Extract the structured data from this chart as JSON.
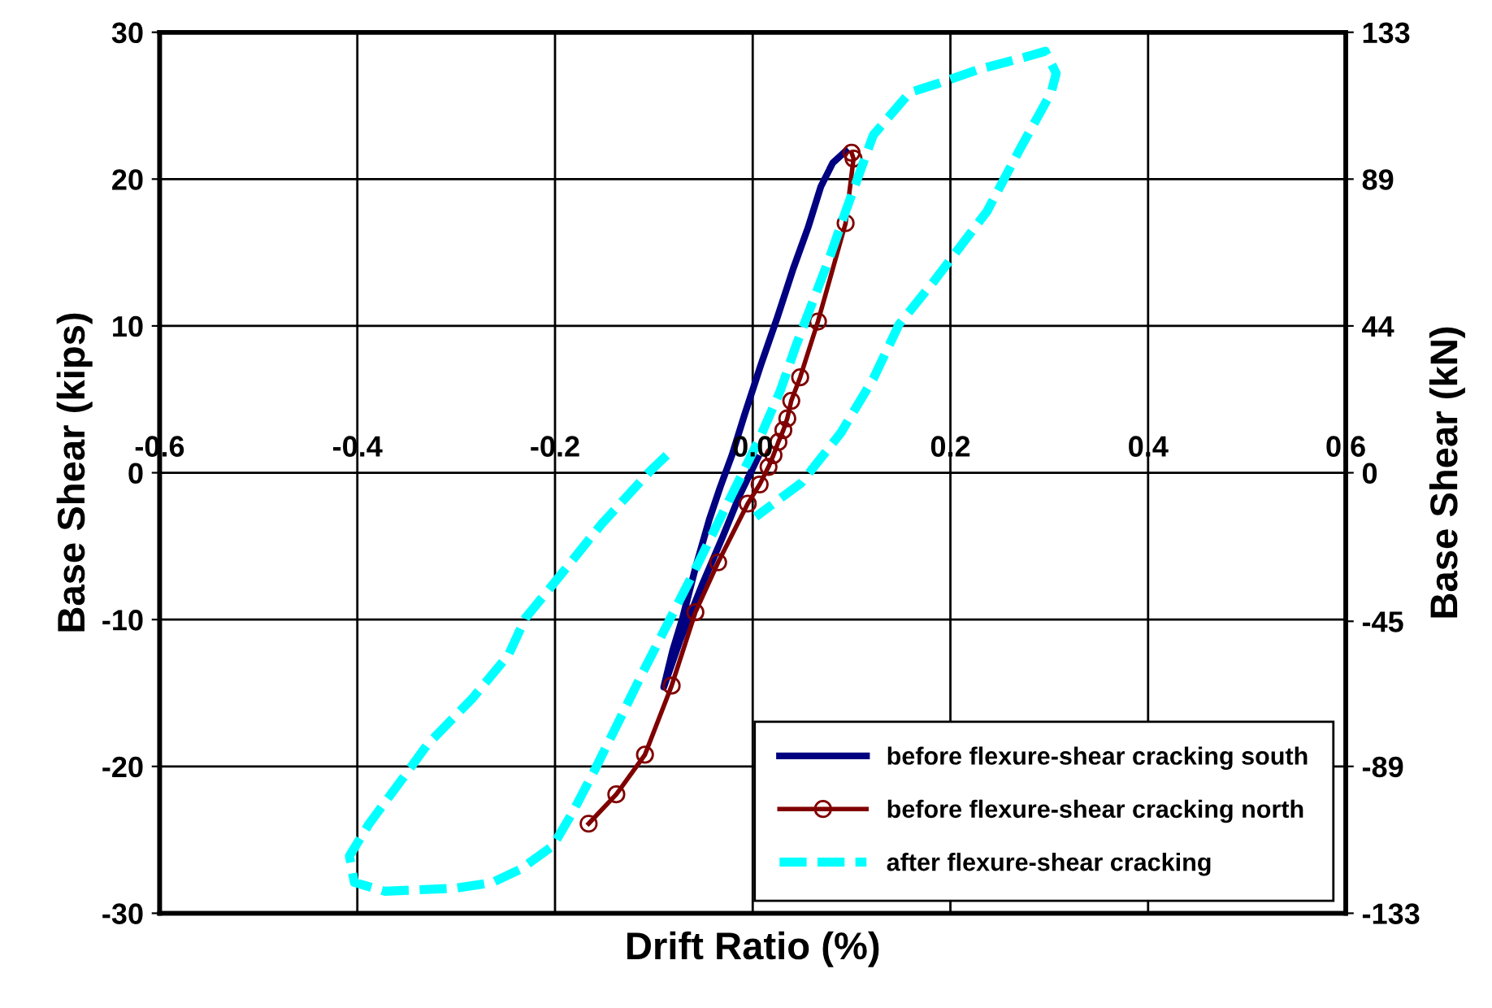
{
  "chart_data": {
    "type": "line",
    "xlabel": "Drift Ratio (%)",
    "ylabel": "Base Shear (kips)",
    "y2label": "Base Shear (kN)",
    "xlim": [
      -0.6,
      0.6
    ],
    "xticks": [
      -0.6,
      -0.4,
      -0.2,
      {
        "value": 0,
        "label": "0.0"
      },
      0.2,
      0.4,
      0.6
    ],
    "ylim": [
      -30,
      30
    ],
    "yticks": [
      -30,
      -20,
      -10,
      0,
      10,
      20,
      30
    ],
    "y2lim": [
      -133.45,
      133.45
    ],
    "y2ticks": [
      {
        "value": -133.45,
        "label": "-133"
      },
      {
        "value": -88.96,
        "label": "-89"
      },
      {
        "value": -45,
        "label": "-45"
      },
      0,
      {
        "value": 44.48,
        "label": "44"
      },
      {
        "value": 88.96,
        "label": "89"
      },
      {
        "value": 133.45,
        "label": "133"
      }
    ],
    "grid": true,
    "legend": "bottom right",
    "series": [
      {
        "name": "before flexure-shear cracking south",
        "color": "#000080",
        "marker": "none",
        "line_style": "solid",
        "x": [
          0.005,
          -0.013,
          -0.03,
          -0.051,
          -0.074,
          -0.09,
          -0.081,
          -0.071,
          -0.058,
          -0.044,
          -0.033,
          -0.021,
          -0.008,
          0.008,
          0.025,
          0.041,
          0.056,
          0.069,
          0.081,
          0.094
        ],
        "values": [
          1.0,
          -1.5,
          -4.3,
          -7.6,
          -11.5,
          -14.6,
          -12.1,
          -9.9,
          -6.5,
          -3.2,
          -1.0,
          1.2,
          4.0,
          7.3,
          10.6,
          13.9,
          16.7,
          19.5,
          21.1,
          21.9
        ]
      },
      {
        "name": "before flexure-shear cracking north",
        "color": "#800000",
        "marker": "circle",
        "line_style": "solid",
        "x": [
          -0.166,
          -0.138,
          -0.109,
          -0.082,
          -0.058,
          -0.035,
          -0.005,
          0.007,
          0.016,
          0.021,
          0.026,
          0.031,
          0.035,
          0.039,
          0.048,
          0.066,
          0.094,
          0.102,
          0.1
        ],
        "values": [
          -23.9,
          -21.9,
          -19.2,
          -14.5,
          -9.5,
          -6.1,
          -2.1,
          -0.8,
          0.4,
          1.2,
          2.1,
          2.9,
          3.7,
          4.9,
          6.5,
          10.3,
          17.0,
          21.4,
          21.8
        ]
      },
      {
        "name": "after flexure-shear cracking",
        "color": "#00ffff",
        "marker": "none",
        "line_style": "dashed",
        "x": [
          -0.087,
          -0.104,
          -0.153,
          -0.202,
          -0.23,
          -0.247,
          -0.284,
          -0.329,
          -0.355,
          -0.388,
          -0.408,
          -0.403,
          -0.372,
          -0.301,
          -0.263,
          -0.235,
          -0.202,
          -0.182,
          -0.161,
          -0.136,
          -0.112,
          -0.087,
          -0.062,
          -0.038,
          -0.013,
          0.008,
          0.028,
          0.044,
          0.061,
          0.077,
          0.094,
          0.122,
          0.159,
          0.187,
          0.23,
          0.275,
          0.296,
          0.307,
          0.302,
          0.27,
          0.237,
          0.184,
          0.148,
          0.122,
          0.089,
          0.049,
          0.003
        ],
        "values": [
          1.2,
          0.1,
          -3.5,
          -7.6,
          -9.9,
          -12.4,
          -15.4,
          -18.5,
          -20.9,
          -23.9,
          -26.1,
          -27.9,
          -28.5,
          -28.3,
          -27.9,
          -27.0,
          -25.4,
          -23.1,
          -20.4,
          -17.0,
          -13.7,
          -10.4,
          -7.1,
          -3.8,
          -0.4,
          2.5,
          5.6,
          8.7,
          11.7,
          14.5,
          17.8,
          23.0,
          25.9,
          26.5,
          27.5,
          28.3,
          28.7,
          27.2,
          25.9,
          22.0,
          17.8,
          13.1,
          10.1,
          6.4,
          2.7,
          -0.7,
          -3.0
        ]
      }
    ]
  }
}
